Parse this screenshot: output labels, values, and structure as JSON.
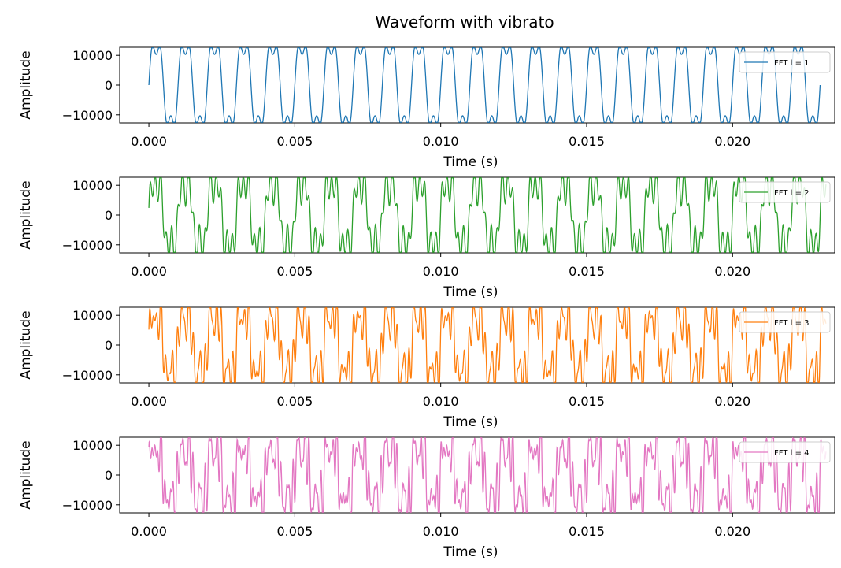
{
  "title": "Waveform with vibrato",
  "chart_data": [
    {
      "type": "line",
      "xlabel": "Time (s)",
      "ylabel": "Amplitude",
      "xlim": [
        -0.001,
        0.0235
      ],
      "ylim": [
        -12700,
        12700
      ],
      "xticks": [
        0.0,
        0.005,
        0.01,
        0.015,
        0.02
      ],
      "xtick_labels": [
        "0.000",
        "0.005",
        "0.010",
        "0.015",
        "0.020"
      ],
      "yticks": [
        10000,
        0,
        -10000
      ],
      "ytick_labels": [
        "10000",
        "0",
        "−10000"
      ],
      "grid": false,
      "legend_placement": "upper-right",
      "series": [
        {
          "name": "FFT l = 1",
          "color": "#1f77b4",
          "x_range": [
            0.0,
            0.023
          ],
          "clip": 12500,
          "partials": [
            {
              "freq": 1000,
              "amp": 14500,
              "phase": 0
            },
            {
              "freq": 3000,
              "amp": 4200,
              "phase": 0
            }
          ]
        },
        {
          "name": "FFT l = 2",
          "color": "#2ca02c",
          "x_range": [
            0.0,
            0.0232
          ],
          "clip": 12500,
          "partials": [
            {
              "freq": 1000,
              "amp": 12000,
              "phase": 0
            },
            {
              "freq": 3000,
              "amp": 4000,
              "phase": 0
            },
            {
              "freq": 5300,
              "amp": 5000,
              "phase": 0.5
            }
          ]
        },
        {
          "name": "FFT l = 3",
          "color": "#ff7f0e",
          "x_range": [
            0.0,
            0.0232
          ],
          "clip": 12500,
          "partials": [
            {
              "freq": 1000,
              "amp": 11000,
              "phase": 0
            },
            {
              "freq": 3000,
              "amp": 4500,
              "phase": 0
            },
            {
              "freq": 5300,
              "amp": 5500,
              "phase": 0.3
            },
            {
              "freq": 7300,
              "amp": 4000,
              "phase": 1.1
            }
          ]
        },
        {
          "name": "FFT l = 4",
          "color": "#e377c2",
          "x_range": [
            0.0,
            0.0232
          ],
          "clip": 12500,
          "partials": [
            {
              "freq": 1000,
              "amp": 10000,
              "phase": 0
            },
            {
              "freq": 3000,
              "amp": 4500,
              "phase": 0
            },
            {
              "freq": 5300,
              "amp": 5000,
              "phase": 0.4
            },
            {
              "freq": 7300,
              "amp": 4500,
              "phase": 1.2
            },
            {
              "freq": 9300,
              "amp": 3500,
              "phase": 2.0
            }
          ]
        }
      ]
    }
  ]
}
